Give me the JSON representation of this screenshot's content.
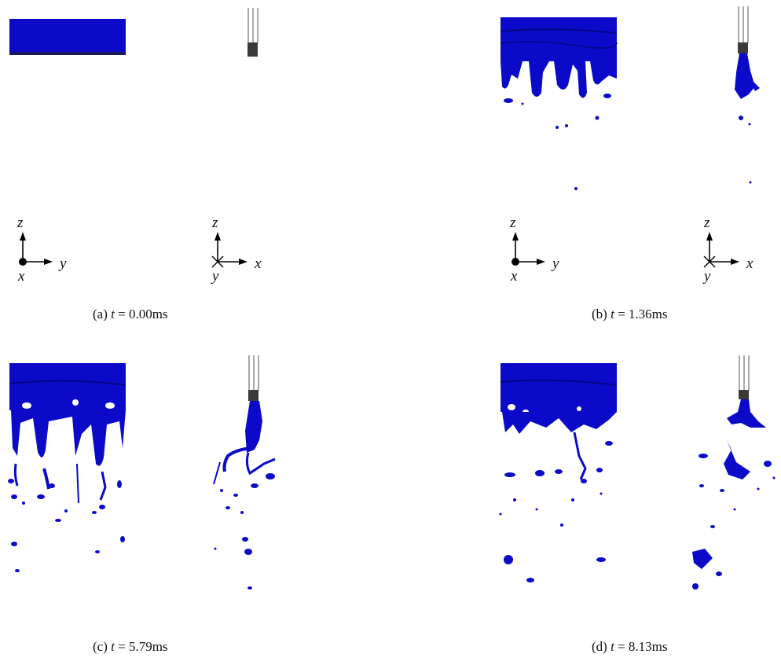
{
  "figure": {
    "panels": [
      {
        "id": "a",
        "label": "(a)",
        "var": "t",
        "eq": "=",
        "value": "0.00",
        "unit": "ms"
      },
      {
        "id": "b",
        "label": "(b)",
        "var": "t",
        "eq": "=",
        "value": "1.36",
        "unit": "ms"
      },
      {
        "id": "c",
        "label": "(c)",
        "var": "t",
        "eq": "=",
        "value": "5.79",
        "unit": "ms"
      },
      {
        "id": "d",
        "label": "(d)",
        "var": "t",
        "eq": "=",
        "value": "8.13",
        "unit": "ms"
      }
    ],
    "axes_front": {
      "up": "z",
      "right": "y",
      "out": "x"
    },
    "axes_side": {
      "up": "z",
      "right": "x",
      "in": "y"
    },
    "colors": {
      "liquid": "#0a0ac8",
      "liquid_dark": "#050580",
      "nozzle": "#3a3a3a",
      "axis": "#000000"
    }
  }
}
